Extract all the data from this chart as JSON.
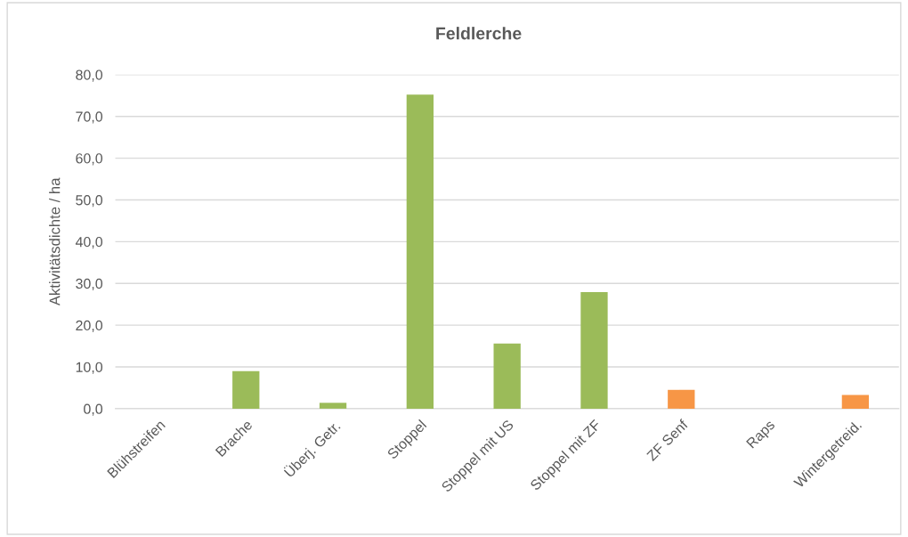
{
  "chart_data": {
    "type": "bar",
    "title": "Feldlerche",
    "ylabel": "Aktivitätsdichte / ha",
    "categories": [
      "Blühstreifen",
      "Brache",
      "Überj. Getr.",
      "Stoppel",
      "Stoppel mit US",
      "Stoppel mit ZF",
      "ZF Senf",
      "Raps",
      "Wintergetreid."
    ],
    "values": [
      0,
      9.0,
      1.4,
      75.2,
      15.6,
      27.9,
      4.5,
      0,
      3.3
    ],
    "colors": [
      "#9bbb59",
      "#9bbb59",
      "#9bbb59",
      "#9bbb59",
      "#9bbb59",
      "#9bbb59",
      "#f79646",
      "#f79646",
      "#f79646"
    ],
    "ylim": [
      0,
      80
    ],
    "yticks": [
      {
        "value": 0,
        "label": "0,0"
      },
      {
        "value": 10,
        "label": "10,0"
      },
      {
        "value": 20,
        "label": "20,0"
      },
      {
        "value": 30,
        "label": "30,0"
      },
      {
        "value": 40,
        "label": "40,0"
      },
      {
        "value": 50,
        "label": "50,0"
      },
      {
        "value": 60,
        "label": "60,0"
      },
      {
        "value": 70,
        "label": "70,0"
      },
      {
        "value": 80,
        "label": "80,0"
      }
    ],
    "grid": "y"
  }
}
